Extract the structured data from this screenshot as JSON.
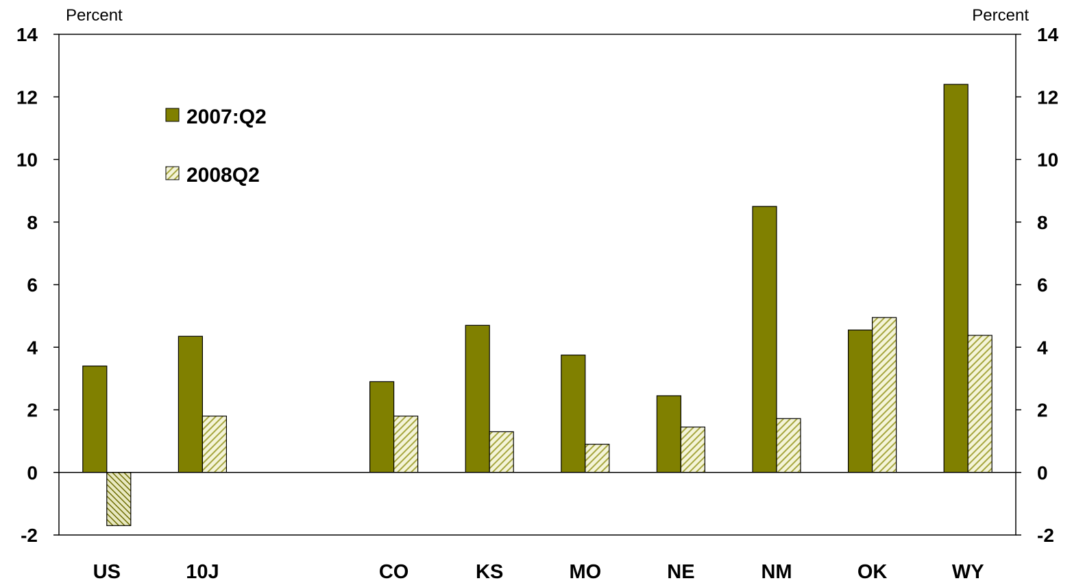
{
  "chart_data": {
    "type": "bar",
    "categories": [
      "US",
      "10J",
      "",
      "CO",
      "KS",
      "MO",
      "NE",
      "NM",
      "OK",
      "WY"
    ],
    "series": [
      {
        "name": "2007:Q2",
        "values": [
          3.4,
          4.35,
          null,
          2.9,
          4.7,
          3.75,
          2.45,
          8.5,
          4.55,
          12.4
        ],
        "color": "#808000",
        "pattern": "solid"
      },
      {
        "name": "2008Q2",
        "values": [
          -1.7,
          1.8,
          null,
          1.8,
          1.3,
          0.9,
          1.45,
          1.72,
          4.95,
          4.38
        ],
        "color": "#b3b34d",
        "pattern": "diagonal-hatch"
      }
    ],
    "ylabel_left": "Percent",
    "ylabel_right": "Percent",
    "ylim": [
      -2,
      14
    ],
    "yticks": [
      "14",
      "12",
      "10",
      "8",
      "6",
      "4",
      "2",
      "0",
      "-2"
    ],
    "ytick_values": [
      14,
      12,
      10,
      8,
      6,
      4,
      2,
      0,
      -2
    ],
    "legend_position": "upper-left",
    "grid": false,
    "dual_y_axis": true
  }
}
